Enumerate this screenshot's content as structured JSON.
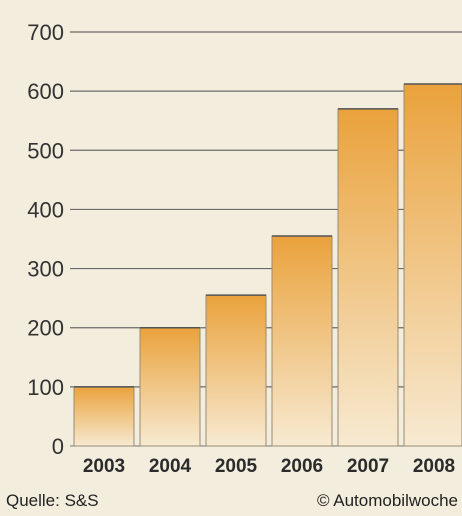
{
  "chart_data": {
    "type": "bar",
    "categories": [
      "2003",
      "2004",
      "2005",
      "2006",
      "2007",
      "2008"
    ],
    "values": [
      100,
      200,
      255,
      355,
      570,
      612
    ],
    "title": "",
    "xlabel": "",
    "ylabel": "",
    "ylim": [
      0,
      700
    ],
    "yticks": [
      0,
      100,
      200,
      300,
      400,
      500,
      600,
      700
    ],
    "ytick_labels": [
      "0",
      "100",
      "200",
      "300",
      "400",
      "500",
      "600",
      "700"
    ],
    "grid": true,
    "colors": {
      "bar_top": "#eaa23c",
      "bar_bottom": "#f7ead2",
      "grid": "#6a6a6a",
      "bar_edge": "#9a8a74"
    }
  },
  "footer": {
    "source": "Quelle: S&S",
    "copyright": "© Automobilwoche"
  }
}
